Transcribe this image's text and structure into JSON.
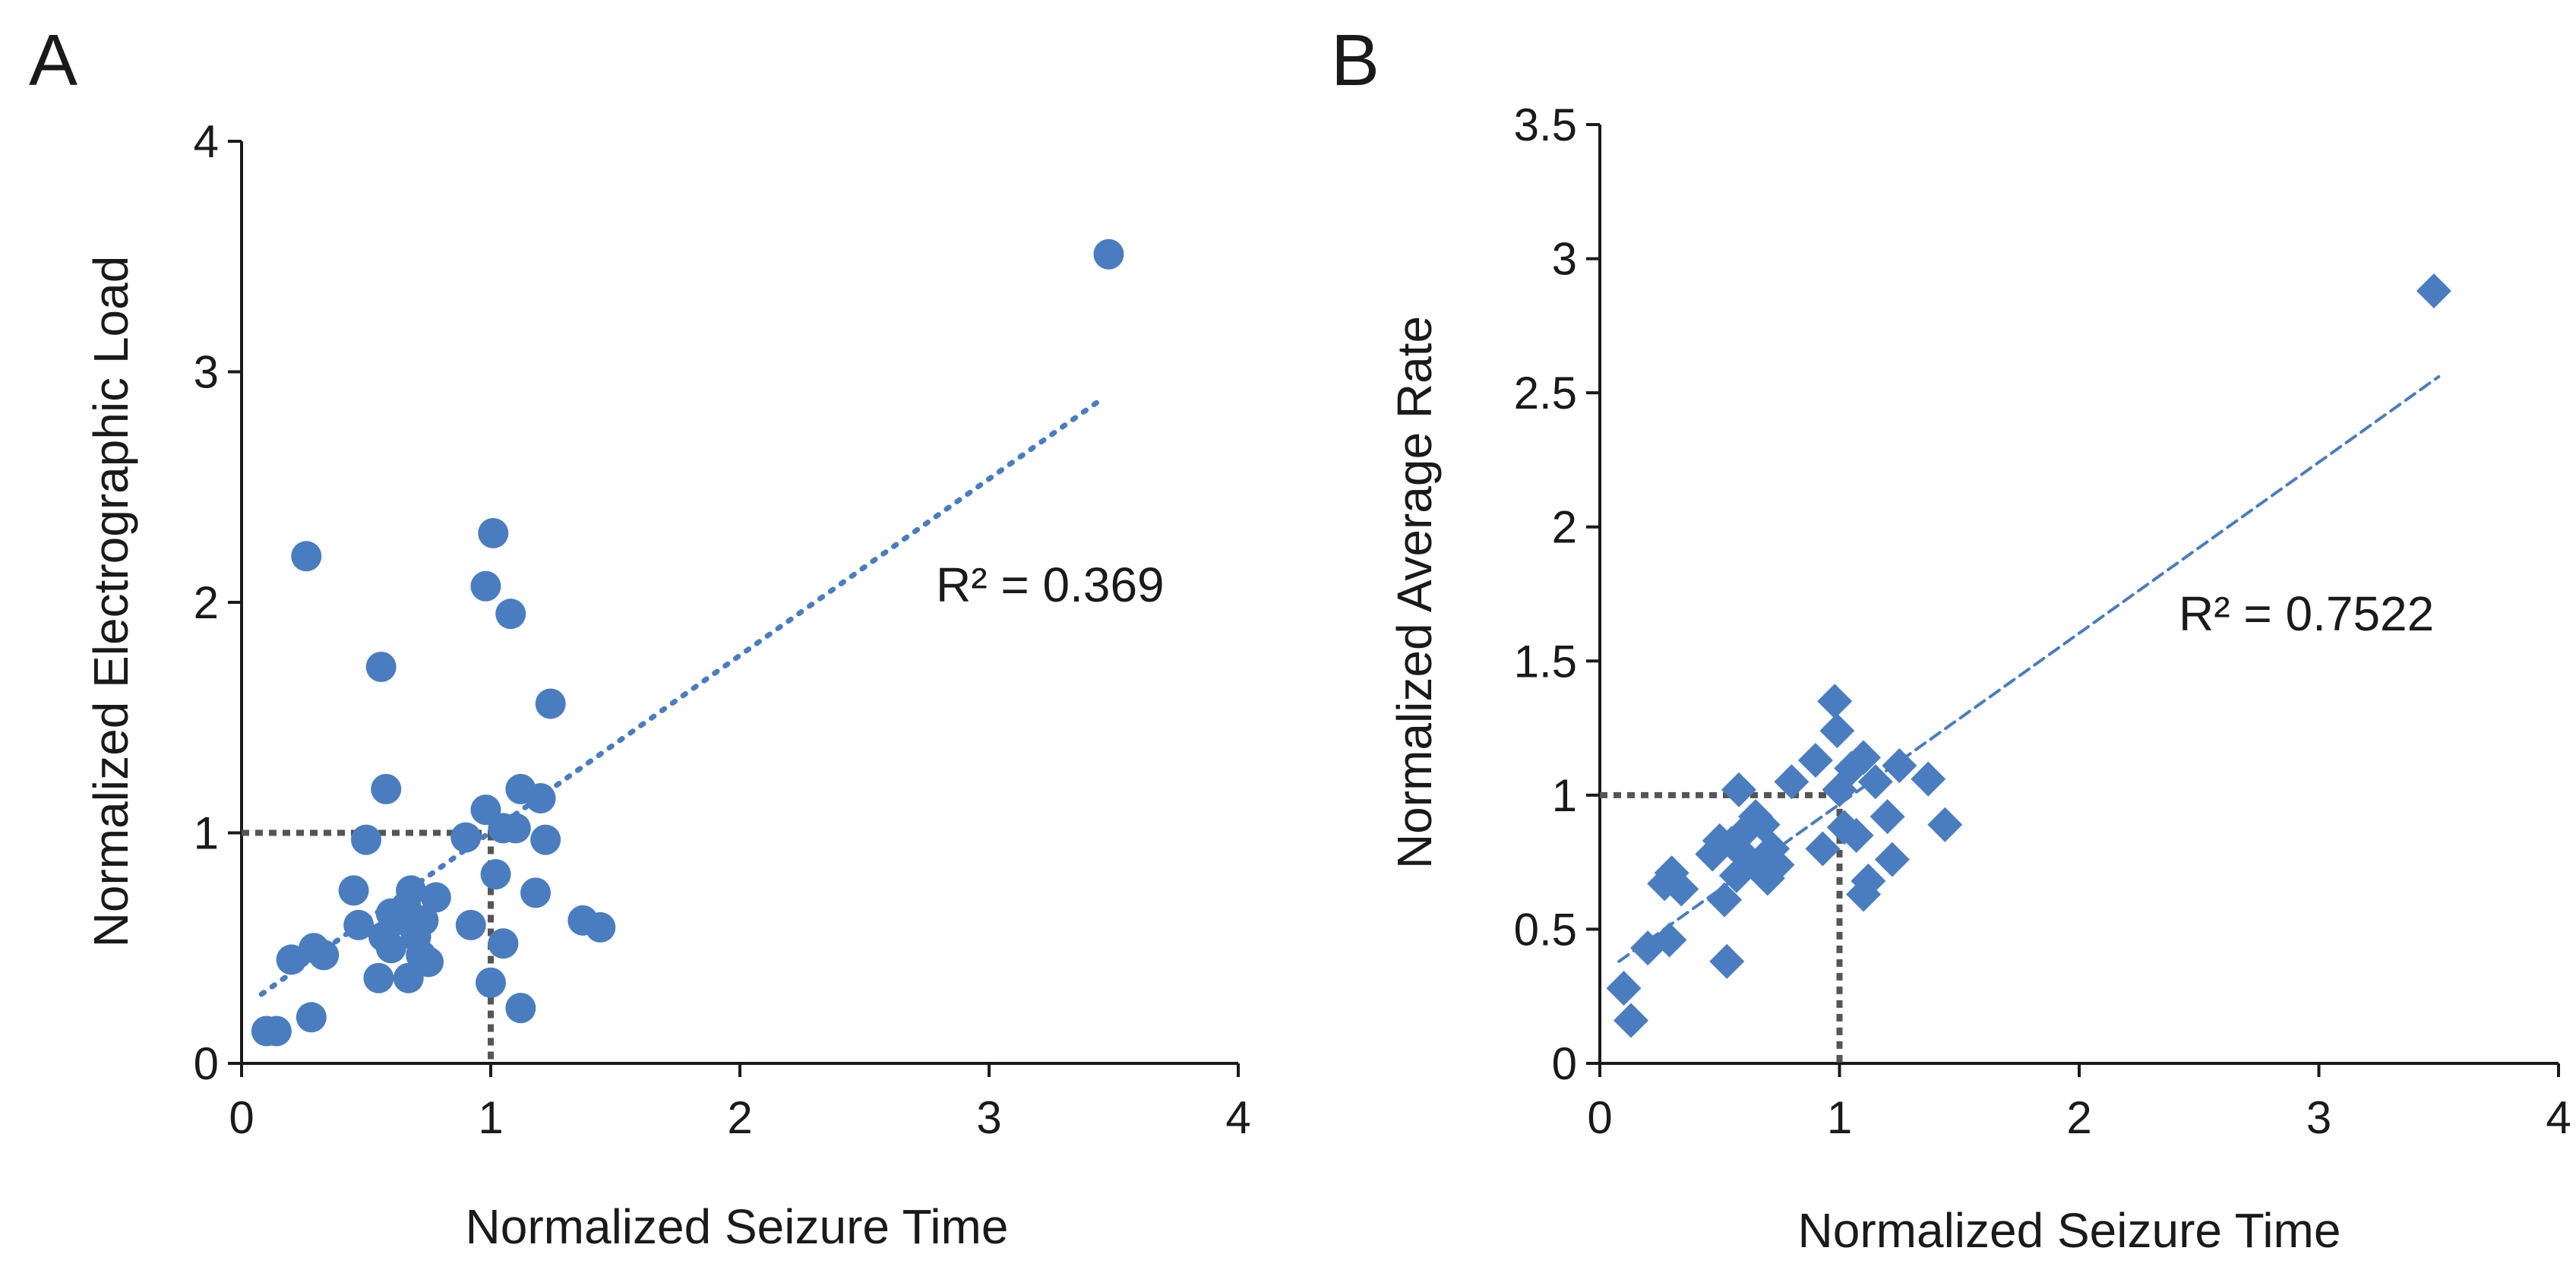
{
  "figure": {
    "panels": [
      "A",
      "B"
    ]
  },
  "chart_data": [
    {
      "panel": "A",
      "type": "scatter",
      "title": "",
      "xlabel": "Normalized Seizure Time",
      "ylabel": "Normalized Electrographic Load",
      "xlim": [
        0,
        4
      ],
      "ylim": [
        0,
        4
      ],
      "xticks": [
        0,
        1,
        2,
        3,
        4
      ],
      "yticks": [
        0,
        1,
        2,
        3,
        4
      ],
      "xtick_labels": [
        "0",
        "1",
        "2",
        "3",
        "4"
      ],
      "ytick_labels": [
        "0",
        "1",
        "2",
        "3",
        "4"
      ],
      "grid": false,
      "marker": "circle",
      "color": "#4a7dbf",
      "annotation": "R² = 0.369",
      "reference_lines": {
        "x": 1,
        "y": 1,
        "style": "dotted",
        "color": "#555555"
      },
      "trendline": {
        "style": "dotted",
        "x": [
          0.08,
          3.45
        ],
        "y": [
          0.3,
          2.88
        ]
      },
      "series": [
        {
          "points": [
            [
              0.1,
              0.14
            ],
            [
              0.14,
              0.14
            ],
            [
              0.2,
              0.45
            ],
            [
              0.26,
              2.2
            ],
            [
              0.28,
              0.2
            ],
            [
              0.29,
              0.5
            ],
            [
              0.33,
              0.47
            ],
            [
              0.45,
              0.75
            ],
            [
              0.47,
              0.6
            ],
            [
              0.5,
              0.97
            ],
            [
              0.55,
              0.37
            ],
            [
              0.56,
              1.72
            ],
            [
              0.57,
              0.55
            ],
            [
              0.58,
              1.19
            ],
            [
              0.6,
              0.65
            ],
            [
              0.6,
              0.5
            ],
            [
              0.62,
              0.62
            ],
            [
              0.66,
              0.68
            ],
            [
              0.67,
              0.37
            ],
            [
              0.68,
              0.75
            ],
            [
              0.7,
              0.55
            ],
            [
              0.72,
              0.47
            ],
            [
              0.73,
              0.62
            ],
            [
              0.75,
              0.44
            ],
            [
              0.78,
              0.72
            ],
            [
              0.9,
              0.98
            ],
            [
              0.92,
              0.6
            ],
            [
              0.98,
              2.07
            ],
            [
              0.98,
              1.1
            ],
            [
              1.0,
              0.35
            ],
            [
              1.01,
              2.3
            ],
            [
              1.02,
              0.82
            ],
            [
              1.05,
              1.02
            ],
            [
              1.05,
              0.52
            ],
            [
              1.08,
              1.95
            ],
            [
              1.1,
              1.02
            ],
            [
              1.12,
              0.24
            ],
            [
              1.12,
              1.19
            ],
            [
              1.18,
              0.74
            ],
            [
              1.2,
              1.15
            ],
            [
              1.22,
              0.97
            ],
            [
              1.24,
              1.56
            ],
            [
              1.37,
              0.62
            ],
            [
              1.44,
              0.59
            ],
            [
              3.48,
              3.51
            ]
          ]
        }
      ]
    },
    {
      "panel": "B",
      "type": "scatter",
      "title": "",
      "xlabel": "Normalized Seizure Time",
      "ylabel": "Normalized Average Rate",
      "xlim": [
        0,
        4
      ],
      "ylim": [
        0,
        3.5
      ],
      "xticks": [
        0,
        1,
        2,
        3,
        4
      ],
      "yticks": [
        0,
        0.5,
        1,
        1.5,
        2,
        2.5,
        3,
        3.5
      ],
      "xtick_labels": [
        "0",
        "1",
        "2",
        "3",
        "4"
      ],
      "ytick_labels": [
        "0",
        "0.5",
        "1",
        "1.5",
        "2",
        "2.5",
        "3",
        "3.5"
      ],
      "grid": false,
      "marker": "diamond",
      "color": "#4a7dbf",
      "annotation": "R² = 0.7522",
      "reference_lines": {
        "x": 1,
        "y": 1,
        "style": "dotted",
        "color": "#555555"
      },
      "trendline": {
        "style": "dashed",
        "x": [
          0.08,
          3.5
        ],
        "y": [
          0.38,
          2.56
        ]
      },
      "series": [
        {
          "points": [
            [
              0.1,
              0.28
            ],
            [
              0.13,
              0.16
            ],
            [
              0.2,
              0.43
            ],
            [
              0.27,
              0.67
            ],
            [
              0.29,
              0.46
            ],
            [
              0.3,
              0.71
            ],
            [
              0.34,
              0.65
            ],
            [
              0.47,
              0.78
            ],
            [
              0.5,
              0.83
            ],
            [
              0.52,
              0.61
            ],
            [
              0.53,
              0.38
            ],
            [
              0.55,
              0.82
            ],
            [
              0.57,
              0.7
            ],
            [
              0.58,
              1.02
            ],
            [
              0.6,
              0.86
            ],
            [
              0.62,
              0.76
            ],
            [
              0.65,
              0.92
            ],
            [
              0.66,
              0.74
            ],
            [
              0.68,
              0.89
            ],
            [
              0.7,
              0.69
            ],
            [
              0.72,
              0.8
            ],
            [
              0.74,
              0.74
            ],
            [
              0.8,
              1.05
            ],
            [
              0.9,
              1.13
            ],
            [
              0.93,
              0.8
            ],
            [
              0.98,
              1.35
            ],
            [
              0.99,
              1.24
            ],
            [
              1.0,
              1.02
            ],
            [
              1.02,
              0.88
            ],
            [
              1.05,
              1.1
            ],
            [
              1.07,
              0.85
            ],
            [
              1.1,
              0.63
            ],
            [
              1.1,
              1.14
            ],
            [
              1.12,
              0.68
            ],
            [
              1.15,
              1.05
            ],
            [
              1.2,
              0.92
            ],
            [
              1.22,
              0.76
            ],
            [
              1.25,
              1.11
            ],
            [
              1.37,
              1.06
            ],
            [
              1.44,
              0.89
            ],
            [
              3.48,
              2.88
            ]
          ]
        }
      ]
    }
  ]
}
